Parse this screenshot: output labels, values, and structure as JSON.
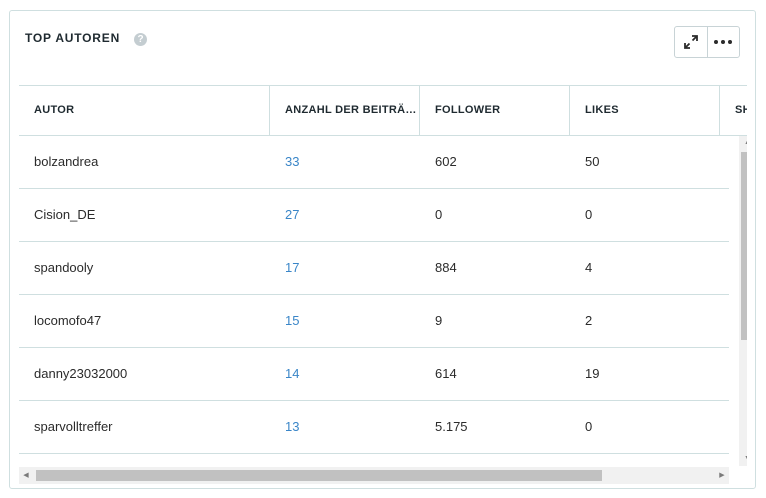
{
  "widget": {
    "title": "TOP AUTOREN",
    "help_icon": "?",
    "expand_icon": "expand-icon",
    "more_icon": "more-horizontal-icon"
  },
  "table": {
    "columns": [
      "AUTOR",
      "ANZAHL DER BEITRÄGE",
      "FOLLOWER",
      "LIKES",
      "SHARES"
    ],
    "rows": [
      {
        "autor": "bolzandrea",
        "beitraege": "33",
        "follower": "602",
        "likes": "50"
      },
      {
        "autor": "Cision_DE",
        "beitraege": "27",
        "follower": "0",
        "likes": "0"
      },
      {
        "autor": "spandooly",
        "beitraege": "17",
        "follower": "884",
        "likes": "4"
      },
      {
        "autor": "locomofo47",
        "beitraege": "15",
        "follower": "9",
        "likes": "2"
      },
      {
        "autor": "danny23032000",
        "beitraege": "14",
        "follower": "614",
        "likes": "19"
      },
      {
        "autor": "sparvolltreffer",
        "beitraege": "13",
        "follower": "5.175",
        "likes": "0"
      }
    ]
  },
  "colors": {
    "border": "#cfdfe0",
    "link": "#3a86c8",
    "text": "#2b2b2b"
  }
}
